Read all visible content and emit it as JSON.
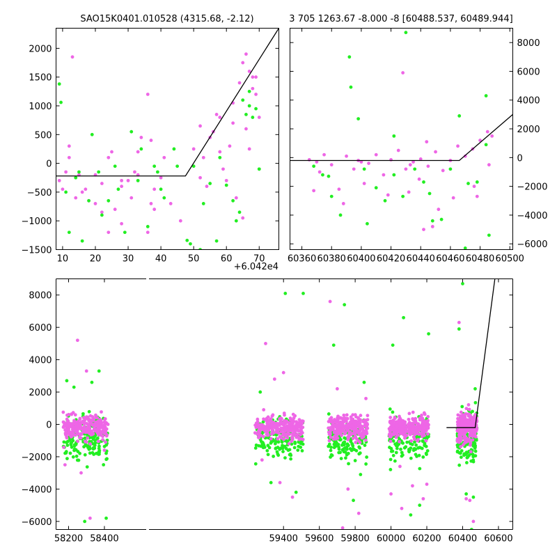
{
  "colors": {
    "magenta": "#ee66e6",
    "green": "#22ee22",
    "model": "#000000"
  },
  "chart_data": [
    {
      "type": "scatter",
      "id": "top-left",
      "title": "SAO15K0401.010528 (4315.68, -2.12)",
      "x_offset_label": "+6.042e4",
      "xlim": [
        8,
        76
      ],
      "ylim": [
        -1500,
        2350
      ],
      "xticks": [
        10,
        20,
        30,
        40,
        50,
        60,
        70
      ],
      "yticks": [
        -1500,
        -1000,
        -500,
        0,
        500,
        1000,
        1500,
        2000
      ],
      "model_line": {
        "x": [
          8,
          47.5,
          76
        ],
        "y": [
          -220,
          -220,
          2350
        ]
      },
      "series": [
        {
          "color": "magenta",
          "x": [
            9,
            10,
            11,
            12,
            13,
            14,
            15,
            17,
            18,
            20,
            22,
            24,
            26,
            28,
            30,
            32,
            34,
            36,
            37,
            38,
            40,
            43,
            46,
            50,
            52,
            54,
            56,
            58,
            60,
            62,
            64,
            65,
            66,
            67,
            68,
            69,
            70,
            22,
            25,
            28,
            31,
            33,
            36,
            38,
            41,
            52,
            55,
            57,
            59,
            61,
            63,
            65,
            67,
            68,
            12,
            16,
            20,
            24,
            28,
            33,
            37,
            53,
            58,
            62,
            66,
            69
          ],
          "y": [
            -300,
            -450,
            -150,
            100,
            1850,
            -600,
            -200,
            -450,
            -650,
            -700,
            -350,
            -1200,
            -800,
            -1050,
            -300,
            -150,
            450,
            1200,
            -700,
            -450,
            -250,
            -700,
            -1000,
            250,
            650,
            -400,
            550,
            800,
            -300,
            1050,
            1400,
            1750,
            1900,
            1600,
            1300,
            1200,
            800,
            -850,
            200,
            -400,
            -600,
            -200,
            -1200,
            -800,
            100,
            -250,
            450,
            850,
            -100,
            300,
            -600,
            -950,
            250,
            1500,
            300,
            -500,
            -200,
            100,
            -300,
            200,
            400,
            100,
            200,
            700,
            600,
            1500
          ]
        },
        {
          "color": "green",
          "x": [
            9,
            9.5,
            12,
            14,
            16,
            18,
            19,
            22,
            24,
            27,
            29,
            31,
            34,
            36,
            38,
            40,
            41,
            45,
            48,
            50,
            52,
            55,
            57,
            60,
            62,
            64,
            65,
            66,
            67,
            68,
            69,
            70,
            11,
            15,
            21,
            26,
            33,
            39,
            44,
            49,
            53,
            58,
            63,
            67,
            70
          ],
          "y": [
            1380,
            1060,
            -1200,
            -250,
            -1350,
            -650,
            500,
            -900,
            -650,
            -450,
            -1200,
            550,
            250,
            -1100,
            -50,
            -450,
            -600,
            -50,
            -1340,
            -50,
            -1500,
            -350,
            -1350,
            -380,
            -650,
            -850,
            1100,
            850,
            1000,
            800,
            950,
            -100,
            -500,
            -150,
            -150,
            -50,
            -300,
            -150,
            250,
            -1400,
            -700,
            100,
            -1000,
            1250,
            -100
          ]
        }
      ]
    },
    {
      "type": "scatter",
      "id": "top-right",
      "title": "3 705 1263.67 -8.000 -8 [60488.537, 60489.944]",
      "xlim": [
        60352,
        60502
      ],
      "ylim": [
        -6400,
        9000
      ],
      "xticks": [
        60360,
        60380,
        60400,
        60420,
        60440,
        60460,
        60480,
        60500
      ],
      "yticks": [
        -6000,
        -4000,
        -2000,
        0,
        2000,
        4000,
        6000,
        8000
      ],
      "model_line": {
        "x": [
          60352,
          60466,
          60502
        ],
        "y": [
          -200,
          -200,
          3000
        ]
      },
      "series": [
        {
          "color": "magenta",
          "x": [
            60365,
            60370,
            60375,
            60380,
            60385,
            60390,
            60395,
            60400,
            60405,
            60410,
            60415,
            60420,
            60425,
            60430,
            60435,
            60440,
            60445,
            60450,
            60455,
            60460,
            60465,
            60470,
            60475,
            60480,
            60485,
            60488,
            60372,
            60388,
            60402,
            60418,
            60432,
            60442,
            60452,
            60462,
            60476,
            60486,
            60368,
            60398,
            60428,
            60448,
            60478,
            60433,
            60439,
            60444
          ],
          "y": [
            -150,
            -300,
            200,
            -500,
            -2200,
            100,
            -800,
            -300,
            -400,
            200,
            -1200,
            -150,
            500,
            -800,
            -300,
            -100,
            -600,
            400,
            -900,
            -200,
            800,
            100,
            600,
            1200,
            1800,
            1500,
            -1000,
            -3200,
            -1800,
            -2600,
            -2400,
            -5000,
            -3600,
            -2800,
            -2000,
            -500,
            -2300,
            -200,
            5900,
            -4800,
            -2700,
            -500,
            -1500,
            1100
          ]
        },
        {
          "color": "green",
          "x": [
            60368,
            60374,
            60380,
            60386,
            60392,
            60393,
            60398,
            60404,
            60410,
            60416,
            60422,
            60428,
            60430,
            60436,
            60442,
            60448,
            60454,
            60460,
            60466,
            60472,
            60478,
            60484,
            60486,
            60378,
            60402,
            60422,
            60446,
            60470,
            60484
          ],
          "y": [
            -600,
            -1200,
            -2700,
            -4000,
            7000,
            4900,
            2700,
            -4600,
            -2100,
            -3000,
            -1200,
            -2700,
            8700,
            -800,
            -1700,
            -4400,
            -4300,
            -800,
            2900,
            -1800,
            -1700,
            4300,
            -5400,
            -1300,
            -800,
            1500,
            -2500,
            -6300,
            900
          ]
        }
      ]
    },
    {
      "type": "scatter",
      "id": "bottom",
      "xlim": [
        58130,
        60680
      ],
      "ylim": [
        -6500,
        9000
      ],
      "xticks": [
        58200,
        58400,
        59400,
        59600,
        59800,
        60000,
        60200,
        60400,
        60600
      ],
      "yticks": [
        -6000,
        -4000,
        -2000,
        0,
        2000,
        4000,
        6000,
        8000
      ],
      "broken_axis_gap": [
        58430,
        59235
      ],
      "clusters": [
        {
          "x_range": [
            58170,
            58420
          ],
          "spread": 700,
          "green_low": -3200
        },
        {
          "x_range": [
            59240,
            59510
          ],
          "spread": 700,
          "green_low": -3400
        },
        {
          "x_range": [
            59650,
            59870
          ],
          "spread": 700,
          "green_low": -3000
        },
        {
          "x_range": [
            59990,
            60210
          ],
          "spread": 700,
          "green_low": -3200
        },
        {
          "x_range": [
            60370,
            60480
          ],
          "spread": 900,
          "green_low": -3000
        }
      ],
      "model_line": {
        "x": [
          60310,
          60470,
          60580
        ],
        "y": [
          -200,
          -200,
          9000
        ]
      },
      "series": [
        {
          "color": "magenta",
          "x": [
            58250,
            58300,
            58180,
            58400,
            58320,
            59300,
            59350,
            59400,
            59450,
            59280,
            59660,
            59700,
            59760,
            59820,
            59860,
            60000,
            60060,
            60120,
            60180,
            60200,
            60380,
            60420,
            60460,
            58270,
            59380,
            59730,
            60050,
            60440
          ],
          "y": [
            5200,
            3300,
            -2500,
            -1600,
            -5800,
            5000,
            2800,
            3200,
            -4500,
            -2200,
            7600,
            2200,
            -4000,
            -5500,
            1600,
            -4300,
            -5200,
            -3800,
            -4600,
            -3700,
            6300,
            -4600,
            -6000,
            -3000,
            -3600,
            -6400,
            -2600,
            -4700
          ]
        },
        {
          "color": "green",
          "x": [
            58190,
            58230,
            58290,
            58330,
            58370,
            58410,
            59270,
            59330,
            59410,
            59470,
            59510,
            59680,
            59740,
            59790,
            59830,
            59850,
            60010,
            60070,
            60110,
            60160,
            60210,
            60380,
            60400,
            60420,
            60450,
            60460,
            60470
          ],
          "y": [
            2700,
            2300,
            -6000,
            2600,
            3300,
            -5800,
            2000,
            -3600,
            8100,
            -4200,
            8100,
            4900,
            7400,
            -4700,
            -3100,
            2600,
            4900,
            6600,
            -5600,
            -5000,
            5600,
            5900,
            8700,
            -4300,
            -6500,
            -4500,
            2200
          ]
        }
      ]
    }
  ]
}
